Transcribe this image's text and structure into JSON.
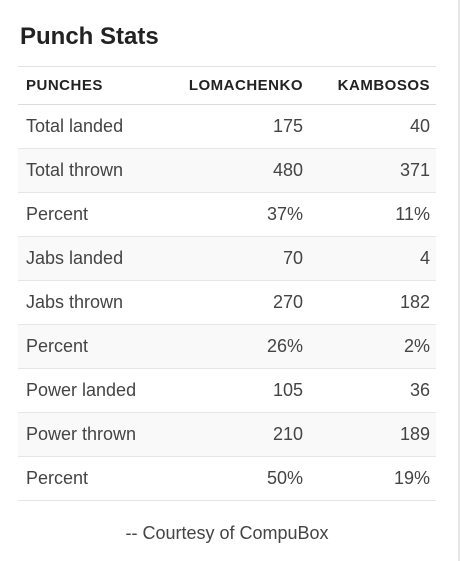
{
  "title": "Punch Stats",
  "table": {
    "headers": [
      "PUNCHES",
      "LOMACHENKO",
      "KAMBOSOS"
    ],
    "rows": [
      {
        "label": "Total landed",
        "lomachenko": "175",
        "kambosos": "40"
      },
      {
        "label": "Total thrown",
        "lomachenko": "480",
        "kambosos": "371"
      },
      {
        "label": "Percent",
        "lomachenko": "37%",
        "kambosos": "11%"
      },
      {
        "label": "Jabs landed",
        "lomachenko": "70",
        "kambosos": "4"
      },
      {
        "label": "Jabs thrown",
        "lomachenko": "270",
        "kambosos": "182"
      },
      {
        "label": "Percent",
        "lomachenko": "26%",
        "kambosos": "2%"
      },
      {
        "label": "Power landed",
        "lomachenko": "105",
        "kambosos": "36"
      },
      {
        "label": "Power thrown",
        "lomachenko": "210",
        "kambosos": "189"
      },
      {
        "label": "Percent",
        "lomachenko": "50%",
        "kambosos": "19%"
      }
    ]
  },
  "credit": "-- Courtesy of CompuBox"
}
